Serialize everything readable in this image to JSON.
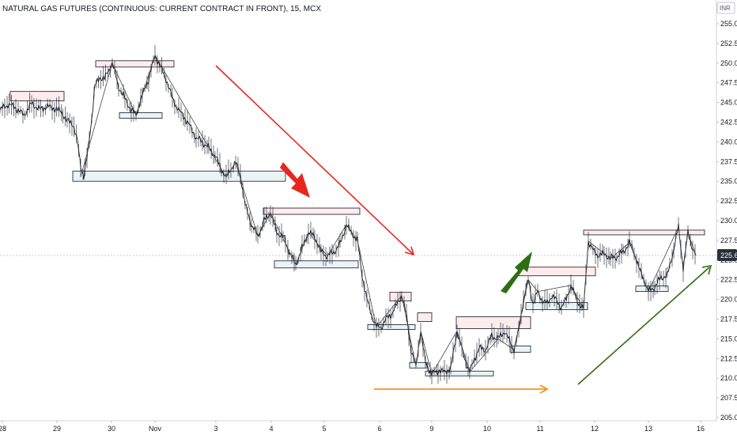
{
  "chart_data": {
    "type": "line",
    "title": "NATURAL GAS FUTURES (CONTINUOUS: CURRENT CONTRACT IN FRONT), 15, MCX",
    "currency": "INR",
    "last_price": "225.6",
    "ylim": [
      205.0,
      255.0
    ],
    "y_ticks": [
      "255.0",
      "252.5",
      "250.0",
      "247.5",
      "245.0",
      "242.5",
      "240.0",
      "237.5",
      "235.0",
      "232.5",
      "230.0",
      "227.5",
      "225.0",
      "222.5",
      "220.0",
      "217.5",
      "215.0",
      "212.5",
      "210.0",
      "207.5",
      "205.0"
    ],
    "x_ticks": [
      "28",
      "29",
      "30",
      "Nov",
      "3",
      "4",
      "5",
      "6",
      "9",
      "10",
      "11",
      "12",
      "13",
      "16"
    ],
    "x_tick_pos": [
      3,
      72,
      141,
      196,
      273,
      343,
      410,
      480,
      546,
      616,
      683,
      752,
      820,
      886
    ],
    "series": [
      {
        "values": [
          [
            0,
            244.0
          ],
          [
            10,
            244.8
          ],
          [
            20,
            244.3
          ],
          [
            30,
            243.4
          ],
          [
            40,
            244.9
          ],
          [
            50,
            244.1
          ],
          [
            60,
            244.5
          ],
          [
            70,
            244.2
          ],
          [
            78,
            243.8
          ],
          [
            85,
            242.6
          ],
          [
            92,
            242.4
          ],
          [
            98,
            240.0
          ],
          [
            102,
            237.0
          ],
          [
            106,
            235.6
          ],
          [
            110,
            238.0
          ],
          [
            116,
            243.0
          ],
          [
            120,
            247.0
          ],
          [
            126,
            248.2
          ],
          [
            132,
            248.0
          ],
          [
            142,
            250.0
          ],
          [
            150,
            247.0
          ],
          [
            158,
            245.5
          ],
          [
            166,
            244.0
          ],
          [
            172,
            243.4
          ],
          [
            180,
            246.0
          ],
          [
            188,
            248.0
          ],
          [
            196,
            251.0
          ],
          [
            203,
            249.5
          ],
          [
            210,
            248.0
          ],
          [
            218,
            245.5
          ],
          [
            226,
            244.0
          ],
          [
            234,
            243.0
          ],
          [
            240,
            242.0
          ],
          [
            248,
            240.5
          ],
          [
            256,
            240.0
          ],
          [
            264,
            239.2
          ],
          [
            272,
            238.3
          ],
          [
            280,
            236.5
          ],
          [
            286,
            235.5
          ],
          [
            292,
            236.6
          ],
          [
            298,
            237.4
          ],
          [
            304,
            235.8
          ],
          [
            310,
            232.0
          ],
          [
            318,
            229.5
          ],
          [
            326,
            228.0
          ],
          [
            334,
            230.0
          ],
          [
            342,
            231.0
          ],
          [
            350,
            228.5
          ],
          [
            358,
            228.0
          ],
          [
            366,
            226.0
          ],
          [
            374,
            224.4
          ],
          [
            382,
            226.5
          ],
          [
            390,
            228.5
          ],
          [
            398,
            228.0
          ],
          [
            406,
            226.0
          ],
          [
            414,
            225.5
          ],
          [
            422,
            226.0
          ],
          [
            430,
            227.0
          ],
          [
            438,
            229.5
          ],
          [
            444,
            228.5
          ],
          [
            452,
            227.5
          ],
          [
            458,
            223.0
          ],
          [
            464,
            220.0
          ],
          [
            470,
            218.0
          ],
          [
            476,
            216.5
          ],
          [
            482,
            216.5
          ],
          [
            488,
            217.5
          ],
          [
            494,
            218.0
          ],
          [
            500,
            219.0
          ],
          [
            508,
            220.5
          ],
          [
            514,
            218.0
          ],
          [
            520,
            213.5
          ],
          [
            526,
            211.5
          ],
          [
            532,
            216.0
          ],
          [
            538,
            212.0
          ],
          [
            546,
            210.5
          ],
          [
            554,
            211.0
          ],
          [
            562,
            210.8
          ],
          [
            570,
            211.2
          ],
          [
            578,
            216.0
          ],
          [
            586,
            213.0
          ],
          [
            594,
            210.8
          ],
          [
            600,
            212.5
          ],
          [
            606,
            213.8
          ],
          [
            614,
            213.6
          ],
          [
            622,
            215.4
          ],
          [
            630,
            215.0
          ],
          [
            638,
            216.0
          ],
          [
            644,
            214.8
          ],
          [
            650,
            213.6
          ],
          [
            656,
            216.0
          ],
          [
            662,
            220.0
          ],
          [
            668,
            222.5
          ],
          [
            674,
            219.5
          ],
          [
            680,
            221.0
          ],
          [
            686,
            219.8
          ],
          [
            692,
            219.5
          ],
          [
            698,
            220.5
          ],
          [
            704,
            219.8
          ],
          [
            710,
            219.0
          ],
          [
            716,
            220.0
          ],
          [
            722,
            221.8
          ],
          [
            730,
            219.8
          ],
          [
            738,
            218.8
          ],
          [
            744,
            227.4
          ],
          [
            750,
            226.2
          ],
          [
            756,
            225.6
          ],
          [
            764,
            225.8
          ],
          [
            772,
            225.2
          ],
          [
            780,
            225.4
          ],
          [
            788,
            226.0
          ],
          [
            796,
            227.2
          ],
          [
            802,
            226.0
          ],
          [
            808,
            224.0
          ],
          [
            814,
            222.6
          ],
          [
            820,
            221.0
          ],
          [
            828,
            221.6
          ],
          [
            836,
            222.8
          ],
          [
            844,
            223.0
          ],
          [
            852,
            226.4
          ],
          [
            858,
            229.2
          ],
          [
            864,
            224.0
          ],
          [
            870,
            228.5
          ],
          [
            876,
            226.4
          ],
          [
            880,
            225.6
          ]
        ]
      }
    ],
    "zigzag": [
      [
        102,
        235.6
      ],
      [
        142,
        250.0
      ],
      [
        172,
        243.4
      ],
      [
        196,
        251.0
      ],
      [
        286,
        235.5
      ],
      [
        298,
        237.4
      ],
      [
        326,
        228.0
      ],
      [
        342,
        231.0
      ],
      [
        374,
        224.4
      ],
      [
        390,
        228.5
      ],
      [
        414,
        225.5
      ],
      [
        438,
        229.5
      ],
      [
        452,
        227.5
      ],
      [
        476,
        216.5
      ],
      [
        508,
        220.5
      ],
      [
        526,
        211.5
      ],
      [
        532,
        216.0
      ],
      [
        546,
        210.5
      ],
      [
        578,
        216.0
      ],
      [
        594,
        210.8
      ],
      [
        630,
        215.0
      ],
      [
        650,
        213.6
      ],
      [
        668,
        222.5
      ],
      [
        680,
        221.0
      ],
      [
        722,
        221.8
      ],
      [
        738,
        218.8
      ],
      [
        744,
        227.4
      ],
      [
        772,
        225.2
      ],
      [
        796,
        227.2
      ],
      [
        820,
        221.0
      ],
      [
        858,
        229.2
      ],
      [
        864,
        224.0
      ],
      [
        870,
        228.5
      ],
      [
        880,
        225.6
      ]
    ],
    "supply_zones": [
      {
        "x0": 13,
        "x1": 81,
        "y0": 245.2,
        "y1": 246.4
      },
      {
        "x0": 121,
        "x1": 220,
        "y0": 249.5,
        "y1": 250.3
      },
      {
        "x0": 333,
        "x1": 455,
        "y0": 230.8,
        "y1": 231.6
      },
      {
        "x0": 493,
        "x1": 520,
        "y0": 219.8,
        "y1": 220.9
      },
      {
        "x0": 528,
        "x1": 546,
        "y0": 217.2,
        "y1": 218.3
      },
      {
        "x0": 577,
        "x1": 671,
        "y0": 216.3,
        "y1": 217.8
      },
      {
        "x0": 656,
        "x1": 753,
        "y0": 223.0,
        "y1": 224.1
      },
      {
        "x0": 738,
        "x1": 891,
        "y0": 228.2,
        "y1": 228.8
      }
    ],
    "demand_zones": [
      {
        "x0": 151,
        "x1": 205,
        "y0": 243.0,
        "y1": 243.7
      },
      {
        "x0": 92,
        "x1": 361,
        "y0": 235.0,
        "y1": 236.3
      },
      {
        "x0": 347,
        "x1": 453,
        "y0": 224.0,
        "y1": 224.9
      },
      {
        "x0": 465,
        "x1": 525,
        "y0": 216.2,
        "y1": 216.8
      },
      {
        "x0": 518,
        "x1": 540,
        "y0": 211.3,
        "y1": 212.0
      },
      {
        "x0": 538,
        "x1": 624,
        "y0": 210.3,
        "y1": 210.9
      },
      {
        "x0": 645,
        "x1": 671,
        "y0": 213.3,
        "y1": 214.1
      },
      {
        "x0": 665,
        "x1": 743,
        "y0": 218.7,
        "y1": 219.6
      },
      {
        "x0": 804,
        "x1": 845,
        "y0": 221.0,
        "y1": 221.7
      }
    ],
    "grid": false
  },
  "colors": {
    "price_line": "#131722",
    "supply_fill": "#fdecec",
    "demand_fill": "#e9f4f6",
    "zone_border": "#131722",
    "red_arrow": "#e8261f",
    "orange_arrow": "#f7931e",
    "green_arrow": "#2e6e12",
    "last_price_bg": "#2a2e39",
    "axis_line": "#d1d4dc"
  }
}
